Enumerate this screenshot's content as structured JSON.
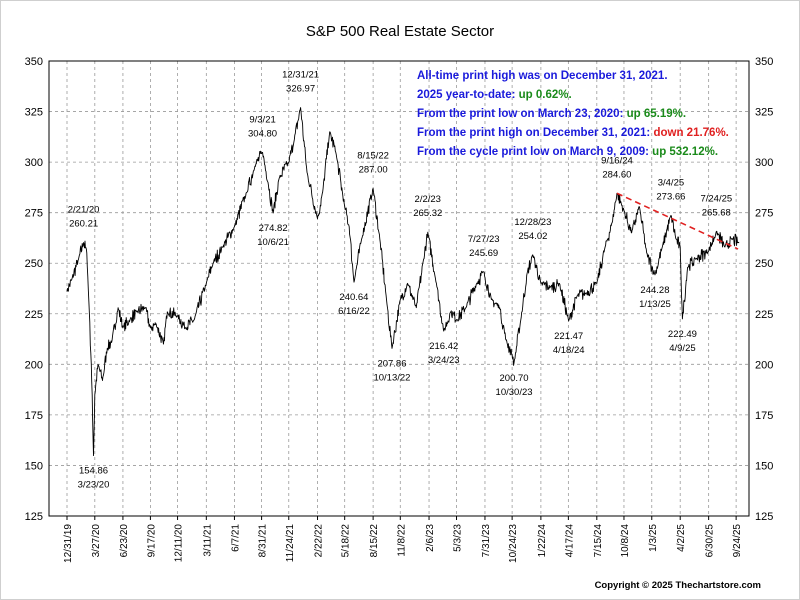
{
  "chart_data": {
    "type": "line",
    "title": "S&P 500 Real Estate Sector",
    "ylim": [
      125,
      350
    ],
    "y_ticks": [
      125,
      150,
      175,
      200,
      225,
      250,
      275,
      300,
      325,
      350
    ],
    "x_range": [
      "2019-12-31",
      "2025-10-03"
    ],
    "x_ticks": [
      "12/31/19",
      "3/27/20",
      "6/23/20",
      "9/17/20",
      "12/11/20",
      "3/11/21",
      "6/7/21",
      "8/31/21",
      "11/24/21",
      "2/22/22",
      "5/18/22",
      "8/15/22",
      "11/8/22",
      "2/6/23",
      "5/3/23",
      "7/31/23",
      "10/24/23",
      "1/22/24",
      "4/17/24",
      "7/15/24",
      "10/8/24",
      "1/3/25",
      "4/2/25",
      "6/30/25",
      "9/24/25"
    ],
    "series": [
      {
        "color": "#000000",
        "points": [
          [
            "2019-12-31",
            236
          ],
          [
            "2020-01-15",
            242
          ],
          [
            "2020-02-05",
            252
          ],
          [
            "2020-02-21",
            260.21
          ],
          [
            "2020-03-02",
            255
          ],
          [
            "2020-03-10",
            225
          ],
          [
            "2020-03-16",
            200
          ],
          [
            "2020-03-23",
            154.86
          ],
          [
            "2020-03-27",
            185
          ],
          [
            "2020-04-06",
            200
          ],
          [
            "2020-04-20",
            192
          ],
          [
            "2020-05-05",
            208
          ],
          [
            "2020-05-20",
            212
          ],
          [
            "2020-06-08",
            228
          ],
          [
            "2020-06-23",
            218
          ],
          [
            "2020-07-15",
            222
          ],
          [
            "2020-08-05",
            226
          ],
          [
            "2020-09-01",
            228
          ],
          [
            "2020-09-17",
            218
          ],
          [
            "2020-10-05",
            220
          ],
          [
            "2020-10-28",
            210
          ],
          [
            "2020-11-09",
            226
          ],
          [
            "2020-12-11",
            224
          ],
          [
            "2021-01-05",
            218
          ],
          [
            "2021-02-01",
            222
          ],
          [
            "2021-03-11",
            240
          ],
          [
            "2021-04-01",
            250
          ],
          [
            "2021-05-01",
            258
          ],
          [
            "2021-06-07",
            268
          ],
          [
            "2021-07-15",
            285
          ],
          [
            "2021-08-10",
            298
          ],
          [
            "2021-09-03",
            304.8
          ],
          [
            "2021-09-20",
            290
          ],
          [
            "2021-10-06",
            274.82
          ],
          [
            "2021-10-25",
            292
          ],
          [
            "2021-11-24",
            300
          ],
          [
            "2021-12-10",
            310
          ],
          [
            "2021-12-31",
            326.97
          ],
          [
            "2022-01-20",
            295
          ],
          [
            "2022-02-22",
            272
          ],
          [
            "2022-03-10",
            285
          ],
          [
            "2022-04-01",
            315
          ],
          [
            "2022-04-20",
            305
          ],
          [
            "2022-05-18",
            278
          ],
          [
            "2022-06-01",
            268
          ],
          [
            "2022-06-16",
            240.64
          ],
          [
            "2022-07-10",
            262
          ],
          [
            "2022-08-15",
            287.0
          ],
          [
            "2022-09-05",
            262
          ],
          [
            "2022-09-26",
            232
          ],
          [
            "2022-10-13",
            207.86
          ],
          [
            "2022-11-08",
            232
          ],
          [
            "2022-12-01",
            240
          ],
          [
            "2022-12-28",
            228
          ],
          [
            "2023-01-20",
            252
          ],
          [
            "2023-02-02",
            265.32
          ],
          [
            "2023-03-01",
            240
          ],
          [
            "2023-03-24",
            216.42
          ],
          [
            "2023-04-15",
            226
          ],
          [
            "2023-05-03",
            222
          ],
          [
            "2023-06-01",
            228
          ],
          [
            "2023-07-05",
            240
          ],
          [
            "2023-07-27",
            245.69
          ],
          [
            "2023-08-20",
            232
          ],
          [
            "2023-09-15",
            228
          ],
          [
            "2023-10-05",
            212
          ],
          [
            "2023-10-24",
            205
          ],
          [
            "2023-10-30",
            200.7
          ],
          [
            "2023-11-20",
            222
          ],
          [
            "2023-12-10",
            245
          ],
          [
            "2023-12-28",
            254.02
          ],
          [
            "2024-01-22",
            240
          ],
          [
            "2024-02-20",
            238
          ],
          [
            "2024-03-20",
            240
          ],
          [
            "2024-04-18",
            221.47
          ],
          [
            "2024-05-15",
            234
          ],
          [
            "2024-06-10",
            235
          ],
          [
            "2024-07-15",
            240
          ],
          [
            "2024-08-10",
            258
          ],
          [
            "2024-09-01",
            270
          ],
          [
            "2024-09-16",
            284.6
          ],
          [
            "2024-10-08",
            276
          ],
          [
            "2024-11-01",
            265
          ],
          [
            "2024-11-25",
            278
          ],
          [
            "2024-12-18",
            255
          ],
          [
            "2025-01-13",
            244.28
          ],
          [
            "2025-02-05",
            258
          ],
          [
            "2025-03-04",
            273.66
          ],
          [
            "2025-03-20",
            262
          ],
          [
            "2025-04-02",
            258
          ],
          [
            "2025-04-09",
            222.49
          ],
          [
            "2025-04-25",
            248
          ],
          [
            "2025-05-20",
            252
          ],
          [
            "2025-06-30",
            256
          ],
          [
            "2025-07-24",
            265.68
          ],
          [
            "2025-08-20",
            258
          ],
          [
            "2025-09-10",
            262
          ],
          [
            "2025-10-03",
            260
          ]
        ]
      }
    ],
    "annotations": [
      {
        "date": "2/21/20",
        "value": "260.21",
        "x": "2020-02-21",
        "pos": "above"
      },
      {
        "date": "3/23/20",
        "value": "154.86",
        "x": "2020-03-23",
        "pos": "below"
      },
      {
        "date": "9/3/21",
        "value": "304.80",
        "x": "2021-09-03",
        "pos": "above"
      },
      {
        "date": "10/6/21",
        "value": "274.82",
        "x": "2021-10-06",
        "pos": "below"
      },
      {
        "date": "12/31/21",
        "value": "326.97",
        "x": "2021-12-31",
        "pos": "above"
      },
      {
        "date": "6/16/22",
        "value": "240.64",
        "x": "2022-06-16",
        "pos": "below"
      },
      {
        "date": "8/15/22",
        "value": "287.00",
        "x": "2022-08-15",
        "pos": "above"
      },
      {
        "date": "10/13/22",
        "value": "207.86",
        "x": "2022-10-13",
        "pos": "below"
      },
      {
        "date": "2/2/23",
        "value": "265.32",
        "x": "2023-02-02",
        "pos": "above"
      },
      {
        "date": "3/24/23",
        "value": "216.42",
        "x": "2023-03-24",
        "pos": "below"
      },
      {
        "date": "7/27/23",
        "value": "245.69",
        "x": "2023-07-27",
        "pos": "above"
      },
      {
        "date": "10/30/23",
        "value": "200.70",
        "x": "2023-10-30",
        "pos": "below"
      },
      {
        "date": "12/28/23",
        "value": "254.02",
        "x": "2023-12-28",
        "pos": "above"
      },
      {
        "date": "4/18/24",
        "value": "221.47",
        "x": "2024-04-18",
        "pos": "below"
      },
      {
        "date": "9/16/24",
        "value": "284.60",
        "x": "2024-09-16",
        "pos": "above"
      },
      {
        "date": "1/13/25",
        "value": "244.28",
        "x": "2025-01-13",
        "pos": "below"
      },
      {
        "date": "3/4/25",
        "value": "273.66",
        "x": "2025-03-04",
        "pos": "above"
      },
      {
        "date": "4/9/25",
        "value": "222.49",
        "x": "2025-04-09",
        "pos": "below"
      },
      {
        "date": "7/24/25",
        "value": "265.68",
        "x": "2025-07-24",
        "pos": "above"
      }
    ],
    "trendline": {
      "color": "#e02020",
      "from": [
        "2024-09-16",
        284.6
      ],
      "to": [
        "2025-09-30",
        257
      ]
    },
    "notes": [
      [
        {
          "text": "All-time print high was on December 31, 2021.",
          "color": "#1a1adb"
        }
      ],
      [
        {
          "text": "2025 year-to-date: ",
          "color": "#1a1adb"
        },
        {
          "text": "up 0.62%.",
          "color": "#1a8a1a"
        }
      ],
      [
        {
          "text": "From the print low on March 23, 2020:  ",
          "color": "#1a1adb"
        },
        {
          "text": "up 65.19%.",
          "color": "#1a8a1a"
        }
      ],
      [
        {
          "text": "From the print high on December 31, 2021:  ",
          "color": "#1a1adb"
        },
        {
          "text": "down 21.76%.",
          "color": "#e02020"
        }
      ],
      [
        {
          "text": "From the cycle print low on March 9, 2009:  ",
          "color": "#1a1adb"
        },
        {
          "text": "up 532.12%.",
          "color": "#1a8a1a"
        }
      ]
    ],
    "copyright": "Copyright © 2025 Thechartstore.com",
    "grid": true,
    "grid_style": "dashed-gray"
  }
}
